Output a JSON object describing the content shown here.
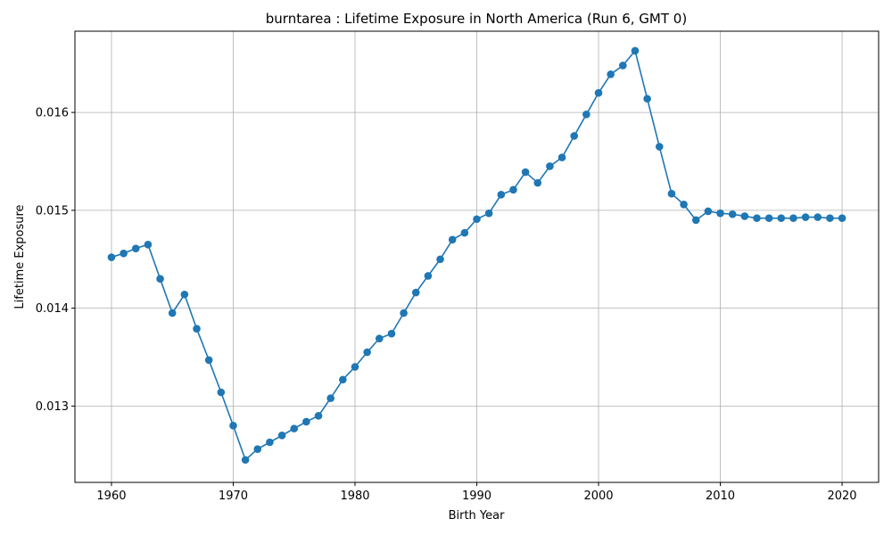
{
  "chart_data": {
    "type": "line",
    "title": "burntarea : Lifetime Exposure in North America (Run 6, GMT 0)",
    "xlabel": "Birth Year",
    "ylabel": "Lifetime Exposure",
    "xlim": [
      1957,
      2023
    ],
    "ylim": [
      0.01222,
      0.01683
    ],
    "xticks": [
      1960,
      1970,
      1980,
      1990,
      2000,
      2010,
      2020
    ],
    "yticks": [
      0.013,
      0.014,
      0.015,
      0.016
    ],
    "ytick_labels": [
      "0.013",
      "0.014",
      "0.015",
      "0.016"
    ],
    "grid": true,
    "legend": "none",
    "series": [
      {
        "color": "#1f77b4",
        "marker": "circle",
        "x": [
          1960,
          1961,
          1962,
          1963,
          1964,
          1965,
          1966,
          1967,
          1968,
          1969,
          1970,
          1971,
          1972,
          1973,
          1974,
          1975,
          1976,
          1977,
          1978,
          1979,
          1980,
          1981,
          1982,
          1983,
          1984,
          1985,
          1986,
          1987,
          1988,
          1989,
          1990,
          1991,
          1992,
          1993,
          1994,
          1995,
          1996,
          1997,
          1998,
          1999,
          2000,
          2001,
          2002,
          2003,
          2004,
          2005,
          2006,
          2007,
          2008,
          2009,
          2010,
          2011,
          2012,
          2013,
          2014,
          2015,
          2016,
          2017,
          2018,
          2019,
          2020
        ],
        "y": [
          0.01452,
          0.01456,
          0.01461,
          0.01465,
          0.0143,
          0.01395,
          0.01414,
          0.01379,
          0.01347,
          0.01314,
          0.0128,
          0.01245,
          0.01256,
          0.01263,
          0.0127,
          0.01277,
          0.01284,
          0.0129,
          0.01308,
          0.01327,
          0.0134,
          0.01355,
          0.01369,
          0.01374,
          0.01395,
          0.01416,
          0.01433,
          0.0145,
          0.0147,
          0.01477,
          0.01491,
          0.01497,
          0.01516,
          0.01521,
          0.01539,
          0.01528,
          0.01545,
          0.01554,
          0.01576,
          0.01598,
          0.0162,
          0.01639,
          0.01648,
          0.01663,
          0.01614,
          0.01565,
          0.01517,
          0.01506,
          0.0149,
          0.01499,
          0.01497,
          0.01496,
          0.01494,
          0.01492,
          0.01492,
          0.01492,
          0.01492,
          0.01493,
          0.01493,
          0.01492,
          0.01492
        ]
      }
    ]
  }
}
